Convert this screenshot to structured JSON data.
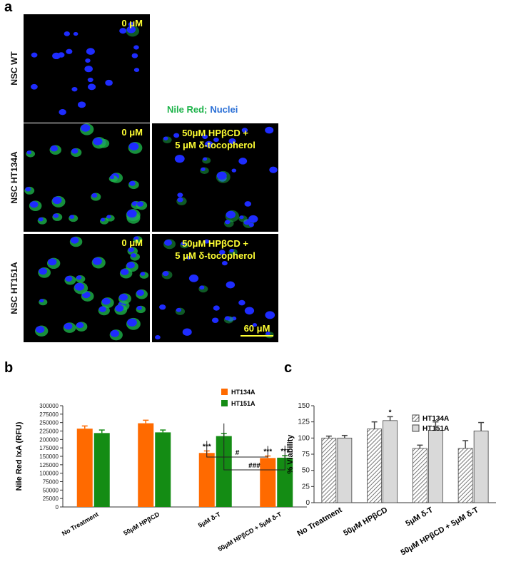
{
  "panel_a": {
    "label": "a",
    "row_labels": [
      "NSC WT",
      "NSC HT134A",
      "NSC HT151A"
    ],
    "images": [
      {
        "caption": [
          "0 μM"
        ]
      },
      {
        "caption": [
          "0 μM"
        ]
      },
      {
        "caption": [
          "50μM HPβCD +",
          "5 μM δ-tocopherol"
        ]
      },
      {
        "caption": [
          "0 μM"
        ]
      },
      {
        "caption": [
          "50μM HPβCD +",
          "5 μM δ-tocopherol"
        ]
      }
    ],
    "stain_legend": [
      "Nile Red;",
      "Nuclei"
    ],
    "scale_bar": "60 μM"
  },
  "chart_data": [
    {
      "type": "bar",
      "panel": "b",
      "ylabel": "Nile Red IxA (RFU)",
      "categories": [
        "No Treatment",
        "50μM HPβCD",
        "5μM δ-T",
        "50μM HPβCD + 5μM δ-T"
      ],
      "series": [
        {
          "name": "HT134A",
          "color": "#ff6a00",
          "values": [
            232000,
            248000,
            160000,
            145000
          ],
          "errors": [
            8000,
            9000,
            6000,
            6000
          ]
        },
        {
          "name": "HT151A",
          "color": "#148c14",
          "values": [
            219000,
            221000,
            210000,
            146000
          ],
          "errors": [
            9000,
            7000,
            8000,
            6000
          ]
        }
      ],
      "ylim": [
        0,
        300000
      ],
      "yticks": [
        0,
        25000,
        50000,
        75000,
        100000,
        125000,
        150000,
        175000,
        200000,
        225000,
        250000,
        275000,
        300000
      ],
      "annotations": [
        "***",
        "***",
        "***",
        "#",
        "###"
      ],
      "legend": "upper right"
    },
    {
      "type": "bar",
      "panel": "c",
      "ylabel": "% Viability",
      "categories": [
        "No Treatment",
        "50μM HPβCD",
        "5μM δ-T",
        "50μM HPβCD + 5μM δ-T"
      ],
      "series": [
        {
          "name": "HT134A",
          "color": "hatch",
          "values": [
            100,
            114,
            84,
            84
          ],
          "errors": [
            3,
            11,
            5,
            12
          ]
        },
        {
          "name": "HT151A",
          "color": "#d9d9d9",
          "values": [
            100,
            127,
            112,
            111
          ],
          "errors": [
            4,
            6,
            13,
            13
          ]
        }
      ],
      "ylim": [
        0,
        150
      ],
      "yticks": [
        0,
        25,
        50,
        75,
        100,
        125,
        150
      ],
      "annotations": [
        "*"
      ],
      "legend": "upper right"
    }
  ]
}
